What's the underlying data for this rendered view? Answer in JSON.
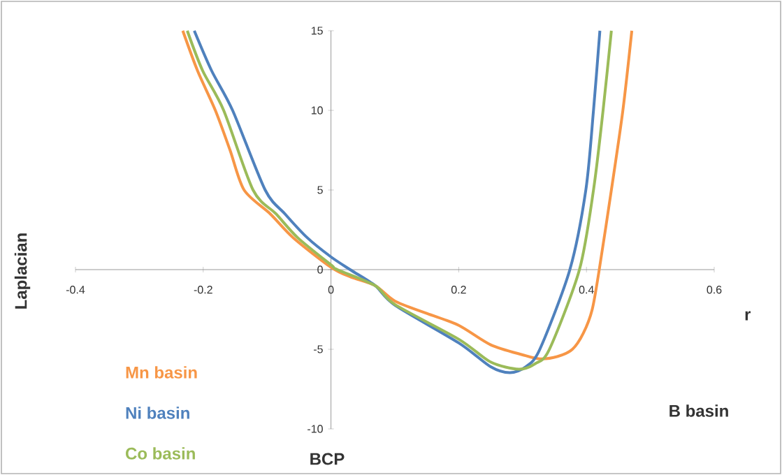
{
  "chart_data": {
    "type": "line",
    "xlabel": "r",
    "ylabel": "Laplacian",
    "xlim": [
      -0.4,
      0.6
    ],
    "ylim": [
      -10,
      15
    ],
    "xticks": [
      -0.4,
      -0.2,
      0,
      0.2,
      0.4,
      0.6
    ],
    "yticks": [
      -10,
      -5,
      0,
      5,
      10,
      15
    ],
    "grid": false,
    "marker": "none",
    "line_style": "solid",
    "legend": "bottom left",
    "annotations": [
      "BCP",
      "B basin"
    ],
    "series": [
      {
        "name": "Mn basin",
        "color": "#f79646",
        "x": [
          -0.232,
          -0.209,
          -0.181,
          -0.158,
          -0.136,
          -0.095,
          -0.059,
          0,
          0.03,
          0.069,
          0.1,
          0.15,
          0.2,
          0.25,
          0.3,
          0.327,
          0.355,
          0.378,
          0.395,
          0.409,
          0.42,
          0.439,
          0.457,
          0.471
        ],
        "values": [
          15,
          12.5,
          10,
          7.5,
          5,
          3.5,
          2,
          0.15,
          -0.45,
          -1.0,
          -1.97,
          -2.75,
          -3.5,
          -4.72,
          -5.35,
          -5.6,
          -5.45,
          -5.0,
          -4.0,
          -2.5,
          0,
          5,
          10,
          15
        ]
      },
      {
        "name": "Ni basin",
        "color": "#4f81bd",
        "x": [
          -0.214,
          -0.187,
          -0.154,
          -0.103,
          -0.072,
          -0.037,
          0,
          0.03,
          0.069,
          0.1,
          0.2,
          0.25,
          0.28,
          0.305,
          0.327,
          0.374,
          0.399,
          0.411,
          0.421
        ],
        "values": [
          15,
          12.5,
          10,
          5,
          3.5,
          2,
          0.8,
          0,
          -1.0,
          -2.23,
          -4.6,
          -6.1,
          -6.47,
          -6.1,
          -5,
          0,
          5,
          10,
          15
        ]
      },
      {
        "name": "Co basin",
        "color": "#9bbb59",
        "x": [
          -0.225,
          -0.201,
          -0.168,
          -0.122,
          -0.086,
          -0.052,
          0,
          0.01,
          0.069,
          0.1,
          0.2,
          0.25,
          0.294,
          0.32,
          0.342,
          0.389,
          0.411,
          0.426,
          0.439
        ],
        "values": [
          15,
          12.5,
          10,
          5,
          3.5,
          2,
          0.3,
          0,
          -1.0,
          -2.19,
          -4.37,
          -5.8,
          -6.25,
          -5.9,
          -5,
          0,
          5,
          10,
          15
        ]
      }
    ]
  }
}
